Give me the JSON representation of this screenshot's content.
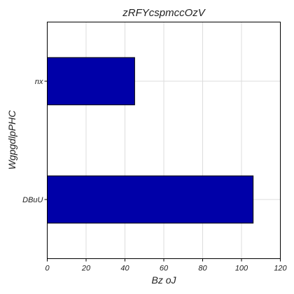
{
  "chart_data": {
    "type": "bar",
    "orientation": "horizontal",
    "title": "zRFYcspmccOzV",
    "xlabel": "Bz oJ",
    "ylabel": "WgpgdlpPHC",
    "categories": [
      "DBuU",
      "nx"
    ],
    "values": [
      106,
      45
    ],
    "xlim": [
      0,
      120
    ],
    "xticks": [
      0,
      20,
      40,
      60,
      80,
      100,
      120
    ],
    "xtick_labels": [
      "0",
      "20",
      "40",
      "60",
      "80",
      "100",
      "120"
    ],
    "grid": true,
    "bar_color": "#0000a8",
    "bar_edge_color": "#000000"
  }
}
